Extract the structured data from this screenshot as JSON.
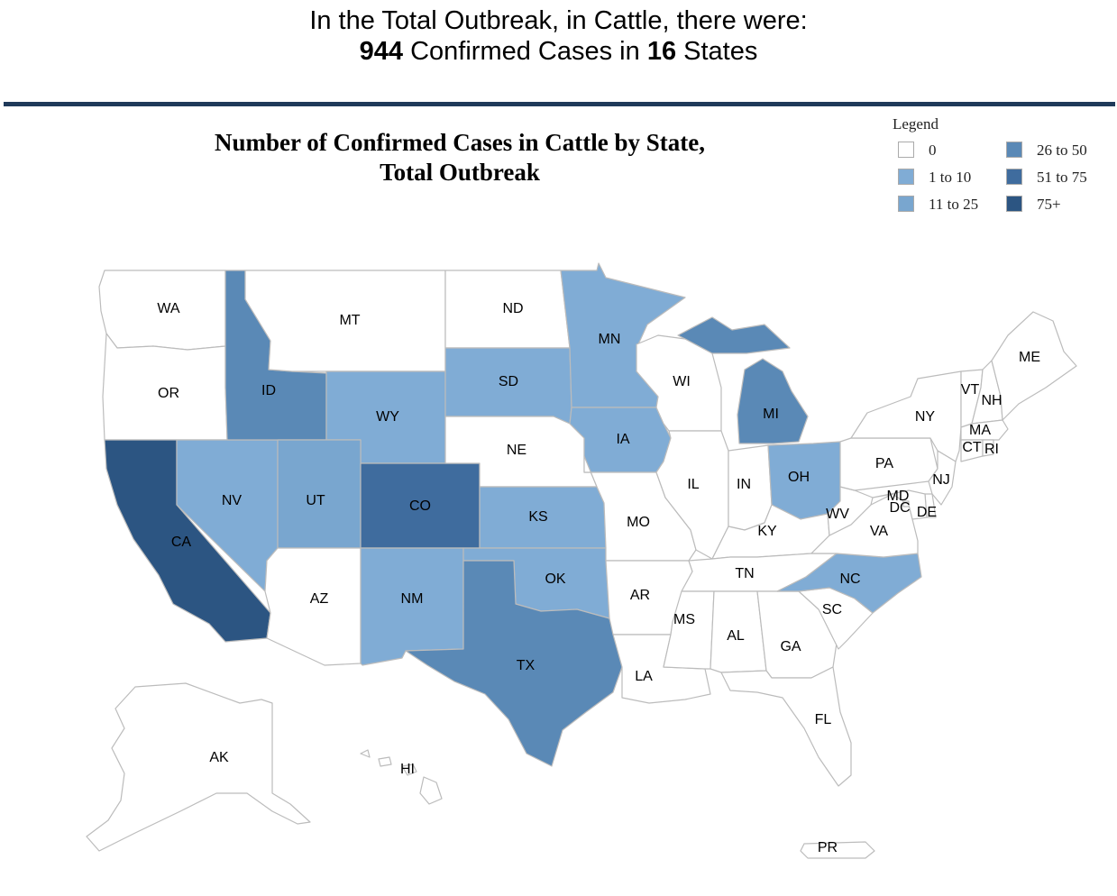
{
  "summary": {
    "line1": "In the Total Outbreak, in Cattle, there were:",
    "cases": "944",
    "cases_text": " Confirmed Cases in ",
    "states": "16",
    "states_text": " States"
  },
  "map_title_line1": "Number of Confirmed Cases in Cattle by State,",
  "map_title_line2": "Total Outbreak",
  "legend": {
    "title": "Legend",
    "items": [
      {
        "label": "0",
        "color": "#ffffff"
      },
      {
        "label": "1 to 10",
        "color": "#80acd5"
      },
      {
        "label": "11 to 25",
        "color": "#79a6cf"
      },
      {
        "label": "26 to 50",
        "color": "#5a89b6"
      },
      {
        "label": "51 to 75",
        "color": "#3f6c9e"
      },
      {
        "label": "75+",
        "color": "#2c5582"
      }
    ]
  },
  "states": [
    {
      "abbr": "WA",
      "cls": 0
    },
    {
      "abbr": "OR",
      "cls": 0
    },
    {
      "abbr": "CA",
      "cls": 5
    },
    {
      "abbr": "NV",
      "cls": 1
    },
    {
      "abbr": "ID",
      "cls": 3
    },
    {
      "abbr": "MT",
      "cls": 0
    },
    {
      "abbr": "WY",
      "cls": 1
    },
    {
      "abbr": "UT",
      "cls": 2
    },
    {
      "abbr": "AZ",
      "cls": 0
    },
    {
      "abbr": "CO",
      "cls": 4
    },
    {
      "abbr": "NM",
      "cls": 1
    },
    {
      "abbr": "ND",
      "cls": 0
    },
    {
      "abbr": "SD",
      "cls": 1
    },
    {
      "abbr": "NE",
      "cls": 0
    },
    {
      "abbr": "KS",
      "cls": 1
    },
    {
      "abbr": "OK",
      "cls": 1
    },
    {
      "abbr": "TX",
      "cls": 3
    },
    {
      "abbr": "MN",
      "cls": 1
    },
    {
      "abbr": "IA",
      "cls": 1
    },
    {
      "abbr": "MO",
      "cls": 0
    },
    {
      "abbr": "AR",
      "cls": 0
    },
    {
      "abbr": "LA",
      "cls": 0
    },
    {
      "abbr": "WI",
      "cls": 0
    },
    {
      "abbr": "IL",
      "cls": 0
    },
    {
      "abbr": "MI",
      "cls": 3
    },
    {
      "abbr": "IN",
      "cls": 0
    },
    {
      "abbr": "OH",
      "cls": 1
    },
    {
      "abbr": "KY",
      "cls": 0
    },
    {
      "abbr": "TN",
      "cls": 0
    },
    {
      "abbr": "MS",
      "cls": 0
    },
    {
      "abbr": "AL",
      "cls": 0
    },
    {
      "abbr": "GA",
      "cls": 0
    },
    {
      "abbr": "FL",
      "cls": 0
    },
    {
      "abbr": "SC",
      "cls": 0
    },
    {
      "abbr": "NC",
      "cls": 1
    },
    {
      "abbr": "VA",
      "cls": 0
    },
    {
      "abbr": "WV",
      "cls": 0
    },
    {
      "abbr": "PA",
      "cls": 0
    },
    {
      "abbr": "NY",
      "cls": 0
    },
    {
      "abbr": "ME",
      "cls": 0
    },
    {
      "abbr": "VT",
      "cls": 0
    },
    {
      "abbr": "NH",
      "cls": 0
    },
    {
      "abbr": "MA",
      "cls": 0
    },
    {
      "abbr": "CT",
      "cls": 0
    },
    {
      "abbr": "RI",
      "cls": 0
    },
    {
      "abbr": "NJ",
      "cls": 0
    },
    {
      "abbr": "DE",
      "cls": 0
    },
    {
      "abbr": "MD",
      "cls": 0
    },
    {
      "abbr": "DC",
      "cls": 0
    },
    {
      "abbr": "AK",
      "cls": 0
    },
    {
      "abbr": "HI",
      "cls": 0
    },
    {
      "abbr": "PR",
      "cls": 0
    }
  ]
}
